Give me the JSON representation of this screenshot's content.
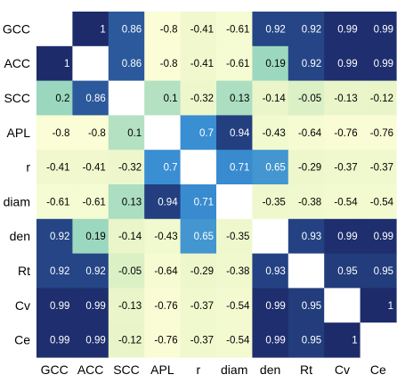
{
  "chart_data": {
    "type": "heatmap",
    "row_labels": [
      "GCC",
      "ACC",
      "SCC",
      "APL",
      "r",
      "diam",
      "den",
      "Rt",
      "Cv",
      "Ce"
    ],
    "col_labels": [
      "GCC",
      "ACC",
      "SCC",
      "APL",
      "r",
      "diam",
      "den",
      "Rt",
      "Cv",
      "Ce"
    ],
    "values": [
      [
        null,
        1,
        0.86,
        -0.8,
        -0.41,
        -0.61,
        0.92,
        0.92,
        0.99,
        0.99
      ],
      [
        1,
        null,
        0.86,
        -0.8,
        -0.41,
        -0.61,
        0.19,
        0.92,
        0.99,
        0.99
      ],
      [
        0.2,
        0.86,
        null,
        0.1,
        -0.32,
        0.13,
        -0.14,
        -0.05,
        -0.13,
        -0.12
      ],
      [
        -0.8,
        -0.8,
        0.1,
        null,
        0.7,
        0.94,
        -0.43,
        -0.64,
        -0.76,
        -0.76
      ],
      [
        -0.41,
        -0.41,
        -0.32,
        0.7,
        null,
        0.71,
        0.65,
        -0.29,
        -0.37,
        -0.37
      ],
      [
        -0.61,
        -0.61,
        0.13,
        0.94,
        0.71,
        null,
        -0.35,
        -0.38,
        -0.54,
        -0.54
      ],
      [
        0.92,
        0.19,
        -0.14,
        -0.43,
        0.65,
        -0.35,
        null,
        0.93,
        0.99,
        0.99
      ],
      [
        0.92,
        0.92,
        -0.05,
        -0.64,
        -0.29,
        -0.38,
        0.93,
        null,
        0.95,
        0.95
      ],
      [
        0.99,
        0.99,
        -0.13,
        -0.76,
        -0.37,
        -0.54,
        0.99,
        0.95,
        null,
        1
      ],
      [
        0.99,
        0.99,
        -0.12,
        -0.76,
        -0.37,
        -0.54,
        0.99,
        0.95,
        1,
        null
      ]
    ],
    "value_labels": [
      [
        "",
        "1",
        "0.86",
        "-0.8",
        "-0.41",
        "-0.61",
        "0.92",
        "0.92",
        "0.99",
        "0.99"
      ],
      [
        "1",
        "",
        "0.86",
        "-0.8",
        "-0.41",
        "-0.61",
        "0.19",
        "0.92",
        "0.99",
        "0.99"
      ],
      [
        "0.2",
        "0.86",
        "",
        "0.1",
        "-0.32",
        "0.13",
        "-0.14",
        "-0.05",
        "-0.13",
        "-0.12"
      ],
      [
        "-0.8",
        "-0.8",
        "0.1",
        "",
        "0.7",
        "0.94",
        "-0.43",
        "-0.64",
        "-0.76",
        "-0.76"
      ],
      [
        "-0.41",
        "-0.41",
        "-0.32",
        "0.7",
        "",
        "0.71",
        "0.65",
        "-0.29",
        "-0.37",
        "-0.37"
      ],
      [
        "-0.61",
        "-0.61",
        "0.13",
        "0.94",
        "0.71",
        "",
        "-0.35",
        "-0.38",
        "-0.54",
        "-0.54"
      ],
      [
        "0.92",
        "0.19",
        "-0.14",
        "-0.43",
        "0.65",
        "-0.35",
        "",
        "0.93",
        "0.99",
        "0.99"
      ],
      [
        "0.92",
        "0.92",
        "-0.05",
        "-0.64",
        "-0.29",
        "-0.38",
        "0.93",
        "",
        "0.95",
        "0.95"
      ],
      [
        "0.99",
        "0.99",
        "-0.13",
        "-0.76",
        "-0.37",
        "-0.54",
        "0.99",
        "0.95",
        "",
        "1"
      ],
      [
        "0.99",
        "0.99",
        "-0.12",
        "-0.76",
        "-0.37",
        "-0.54",
        "0.99",
        "0.95",
        "1",
        ""
      ]
    ],
    "colorscale": {
      "low_color": "#ffffd9",
      "mid_color": "#7fcdbb",
      "high_color": "#1d2b6b"
    },
    "title": "",
    "xlabel": "",
    "ylabel": "",
    "legend": "none",
    "grid": false
  }
}
